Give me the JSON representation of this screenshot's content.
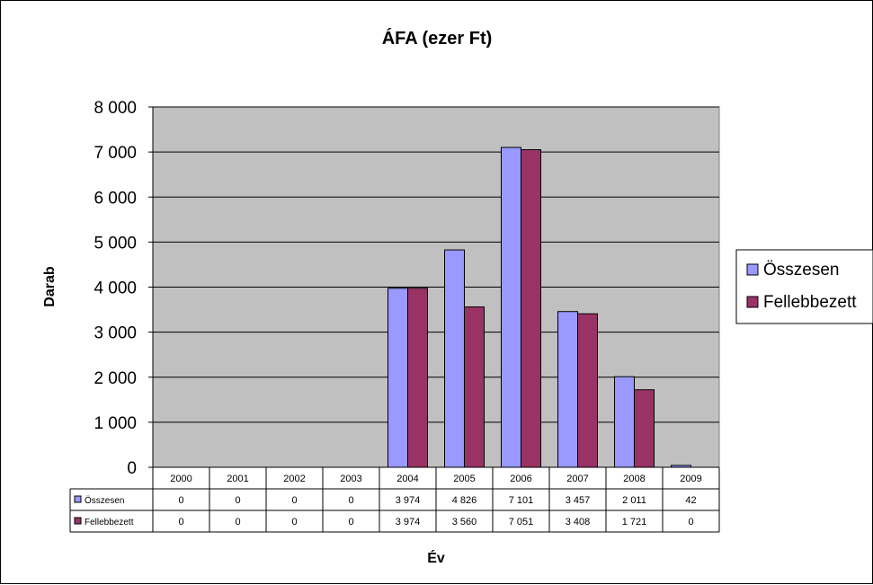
{
  "chart_data": {
    "type": "bar",
    "title": "ÁFA (ezer Ft)",
    "xlabel": "Év",
    "ylabel": "Darab",
    "ylim": [
      0,
      8000
    ],
    "yticks": [
      "0",
      "1 000",
      "2 000",
      "3 000",
      "4 000",
      "5 000",
      "6 000",
      "7 000",
      "8 000"
    ],
    "categories": [
      "2000",
      "2001",
      "2002",
      "2003",
      "2004",
      "2005",
      "2006",
      "2007",
      "2008",
      "2009"
    ],
    "series": [
      {
        "name": "Összesen",
        "color": "#9999ff",
        "values": [
          0,
          0,
          0,
          0,
          3974,
          4826,
          7101,
          3457,
          2011,
          42
        ],
        "table_values": [
          "0",
          "0",
          "0",
          "0",
          "3 974",
          "4 826",
          "7 101",
          "3 457",
          "2 011",
          "42"
        ]
      },
      {
        "name": "Fellebbezett",
        "color": "#993366",
        "values": [
          0,
          0,
          0,
          0,
          3974,
          3560,
          7051,
          3408,
          1721,
          0
        ],
        "table_values": [
          "0",
          "0",
          "0",
          "0",
          "3 974",
          "3 560",
          "7 051",
          "3 408",
          "1 721",
          "0"
        ]
      }
    ],
    "grid": true,
    "plot_background": "#c0c0c0",
    "legend": "right",
    "data_table": true
  }
}
